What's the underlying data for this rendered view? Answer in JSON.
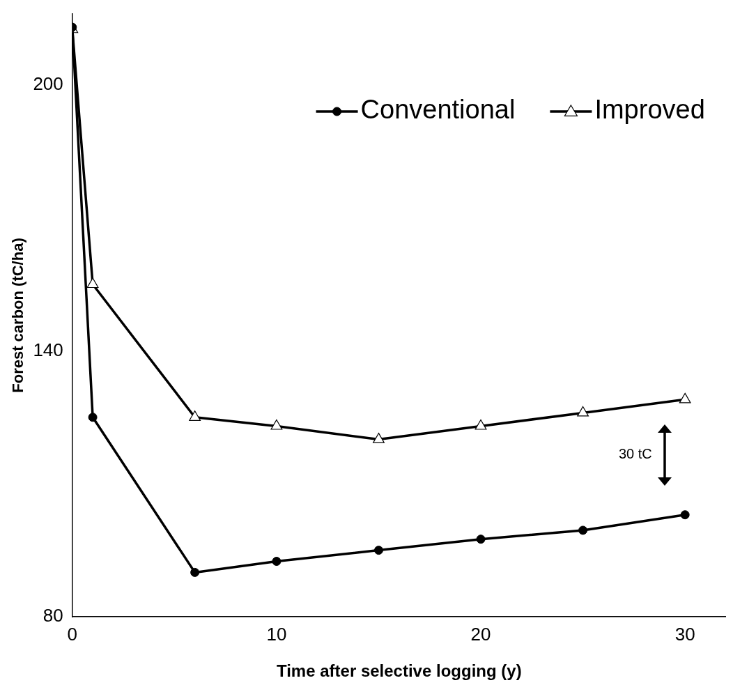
{
  "chart_data": {
    "type": "line",
    "xlabel": "Time after selective logging (y)",
    "ylabel": "Forest carbon (tC/ha)",
    "x": [
      0,
      1,
      6,
      10,
      15,
      20,
      25,
      30
    ],
    "series": [
      {
        "name": "Conventional",
        "color": "#000000",
        "marker": "circle",
        "values": [
          213,
          125,
          90,
          92.5,
          95,
          97.5,
          99.5,
          103
        ]
      },
      {
        "name": "Improved",
        "color": "#000000",
        "marker": "triangle",
        "values": [
          212.5,
          155,
          125,
          123,
          120,
          123,
          126,
          129
        ]
      }
    ],
    "xlim": [
      0,
      32
    ],
    "xticks": [
      0,
      10,
      20,
      30
    ],
    "ylim": [
      80,
      216
    ],
    "yticks": [
      80,
      140,
      200
    ],
    "grid": false,
    "legend": "top right",
    "line_style": "solid",
    "annotations": [
      "30 tC"
    ]
  }
}
